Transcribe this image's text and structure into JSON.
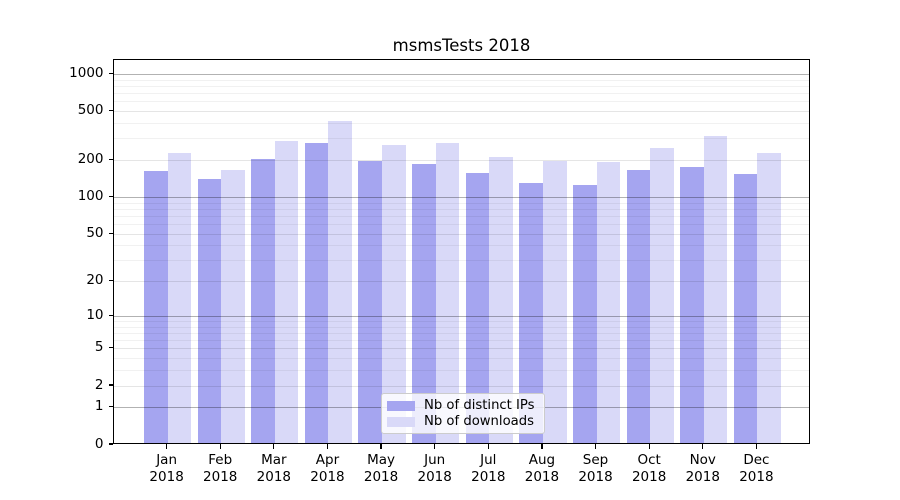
{
  "title": "msmsTests 2018",
  "colors": {
    "ips_bar": "#a5a5f0",
    "downloads_bar": "#d9d9f8",
    "grid_decade": "rgba(0,0,0,0.30)",
    "grid_labeled": "rgba(0,0,0,0.10)",
    "grid_minor": "rgba(0,0,0,0.055)",
    "axis": "#000000",
    "background": "#ffffff"
  },
  "legend": {
    "items": [
      {
        "label": "Nb of distinct IPs",
        "series_key": "ips"
      },
      {
        "label": "Nb of downloads",
        "series_key": "downloads"
      }
    ]
  },
  "chart_data": {
    "type": "bar",
    "title": "msmsTests 2018",
    "categories": [
      "Jan 2018",
      "Feb 2018",
      "Mar 2018",
      "Apr 2018",
      "May 2018",
      "Jun 2018",
      "Jul 2018",
      "Aug 2018",
      "Sep 2018",
      "Oct 2018",
      "Nov 2018",
      "Dec 2018"
    ],
    "series": [
      {
        "name": "Nb of distinct IPs",
        "values": [
          158,
          136,
          200,
          270,
          190,
          180,
          152,
          126,
          122,
          162,
          170,
          150
        ]
      },
      {
        "name": "Nb of downloads",
        "values": [
          222,
          162,
          277,
          405,
          259,
          267,
          207,
          192,
          187,
          245,
          303,
          222
        ]
      }
    ],
    "xlabel": "",
    "ylabel": "",
    "yscale": "log-like (log10(1+v), zero shown at baseline)",
    "y_ticks": [
      0,
      1,
      2,
      5,
      10,
      20,
      50,
      100,
      200,
      500,
      1000
    ],
    "y_minor_gridlines": [
      3,
      4,
      6,
      7,
      8,
      9,
      30,
      40,
      60,
      70,
      80,
      90,
      300,
      400,
      600,
      700,
      800,
      900
    ],
    "ylim": [
      0,
      1310
    ],
    "grid": true,
    "legend_position": "inside lower-center"
  }
}
